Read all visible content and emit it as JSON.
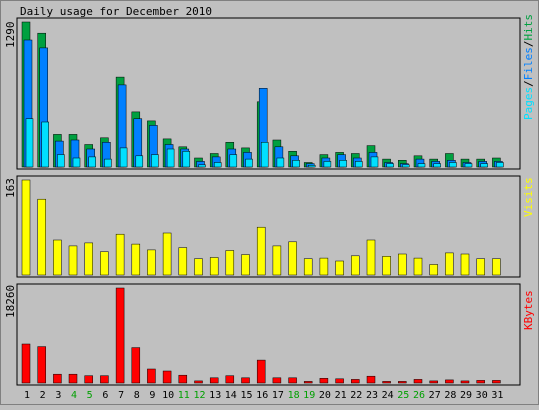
{
  "title": "Daily usage for December 2010",
  "colors": {
    "background": "#c0c0c0",
    "hits": "#00a040",
    "files": "#0080ff",
    "pages": "#00e0ff",
    "visits": "#ffff00",
    "kbytes": "#ff0000",
    "weekend_label": "#00a000",
    "weekday_label": "#000000"
  },
  "chart_data": [
    {
      "type": "bar",
      "panel": "hits-files-pages",
      "ymax_label": "1290",
      "legend": [
        "Pages",
        "Files",
        "Hits"
      ],
      "legend_separator": "/",
      "ylim": [
        0,
        1290
      ],
      "categories": [
        "1",
        "2",
        "3",
        "4",
        "5",
        "6",
        "7",
        "8",
        "9",
        "10",
        "11",
        "12",
        "13",
        "14",
        "15",
        "16",
        "17",
        "18",
        "19",
        "20",
        "21",
        "22",
        "23",
        "24",
        "25",
        "26",
        "27",
        "28",
        "29",
        "30",
        "31"
      ],
      "series": [
        {
          "name": "Hits",
          "values": [
            1290,
            1190,
            290,
            290,
            200,
            260,
            800,
            490,
            410,
            250,
            180,
            80,
            120,
            220,
            170,
            580,
            240,
            140,
            40,
            110,
            130,
            120,
            190,
            70,
            60,
            100,
            70,
            120,
            70,
            70,
            80
          ]
        },
        {
          "name": "Files",
          "values": [
            1130,
            1060,
            230,
            240,
            160,
            220,
            730,
            430,
            370,
            200,
            160,
            50,
            90,
            160,
            130,
            700,
            180,
            100,
            30,
            80,
            110,
            80,
            130,
            40,
            30,
            70,
            50,
            60,
            40,
            50,
            50
          ]
        },
        {
          "name": "Pages",
          "values": [
            430,
            400,
            110,
            80,
            90,
            70,
            170,
            100,
            110,
            160,
            140,
            20,
            40,
            110,
            70,
            220,
            80,
            60,
            15,
            50,
            60,
            50,
            90,
            30,
            20,
            30,
            30,
            40,
            30,
            30,
            40
          ]
        }
      ]
    },
    {
      "type": "bar",
      "panel": "visits",
      "ymax_label": "163",
      "legend": [
        "Visits"
      ],
      "ylim": [
        0,
        163
      ],
      "categories": [
        "1",
        "2",
        "3",
        "4",
        "5",
        "6",
        "7",
        "8",
        "9",
        "10",
        "11",
        "12",
        "13",
        "14",
        "15",
        "16",
        "17",
        "18",
        "19",
        "20",
        "21",
        "22",
        "23",
        "24",
        "25",
        "26",
        "27",
        "28",
        "29",
        "30",
        "31"
      ],
      "series": [
        {
          "name": "Visits",
          "values": [
            163,
            130,
            60,
            50,
            55,
            40,
            70,
            53,
            43,
            72,
            47,
            28,
            30,
            42,
            35,
            82,
            50,
            57,
            28,
            29,
            24,
            33,
            60,
            32,
            36,
            29,
            18,
            38,
            36,
            28,
            28
          ]
        }
      ]
    },
    {
      "type": "bar",
      "panel": "kbytes",
      "ymax_label": "18260",
      "legend": [
        "KBytes"
      ],
      "ylim": [
        0,
        18260
      ],
      "categories": [
        "1",
        "2",
        "3",
        "4",
        "5",
        "6",
        "7",
        "8",
        "9",
        "10",
        "11",
        "12",
        "13",
        "14",
        "15",
        "16",
        "17",
        "18",
        "19",
        "20",
        "21",
        "22",
        "23",
        "24",
        "25",
        "26",
        "27",
        "28",
        "29",
        "30",
        "31"
      ],
      "series": [
        {
          "name": "KBytes",
          "values": [
            7500,
            7000,
            1700,
            1700,
            1400,
            1400,
            18260,
            6800,
            2700,
            2300,
            1500,
            400,
            1000,
            1400,
            1000,
            4400,
            1000,
            1000,
            300,
            900,
            800,
            700,
            1300,
            300,
            300,
            700,
            400,
            600,
            400,
            500,
            500
          ]
        }
      ]
    }
  ],
  "weekend_days": [
    "4",
    "5",
    "11",
    "12",
    "18",
    "19",
    "25",
    "26"
  ]
}
